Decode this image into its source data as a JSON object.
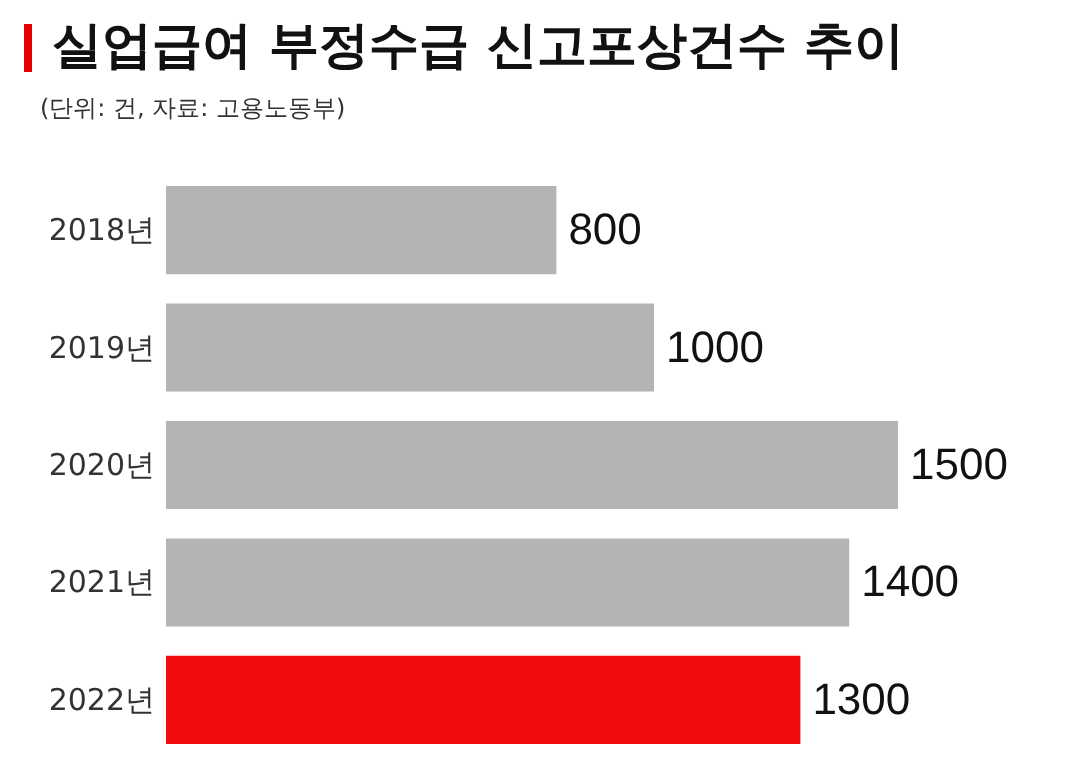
{
  "chart_data": {
    "type": "bar",
    "orientation": "horizontal",
    "title": "실업급여 부정수급 신고포상건수 추이",
    "subtitle": "(단위: 건, 자료: 고용노동부)",
    "categories": [
      "2018년",
      "2019년",
      "2020년",
      "2021년",
      "2022년"
    ],
    "values": [
      800,
      1000,
      1500,
      1400,
      1300
    ],
    "colors": [
      "#b4b4b4",
      "#b4b4b4",
      "#b4b4b4",
      "#b4b4b4",
      "#f20d0d"
    ],
    "data_labels": true
  }
}
